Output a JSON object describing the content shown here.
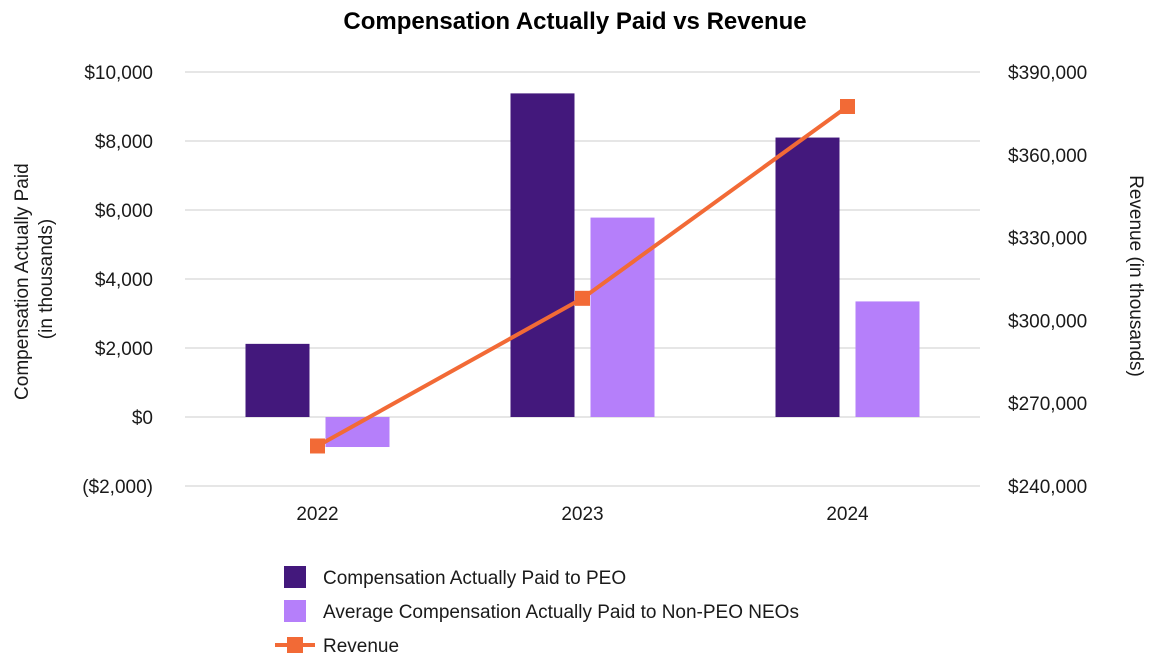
{
  "chart_data": {
    "type": "bar",
    "title": "Compensation Actually Paid vs Revenue",
    "categories": [
      "2022",
      "2023",
      "2024"
    ],
    "y_left": {
      "label_lines": [
        "Compensation Actually Paid",
        "(in thousands)"
      ],
      "min": -2000,
      "max": 10000,
      "ticks": [
        -2000,
        0,
        2000,
        4000,
        6000,
        8000,
        10000
      ],
      "tick_labels": [
        "($2,000)",
        "$0",
        "$2,000",
        "$4,000",
        "$6,000",
        "$8,000",
        "$10,000"
      ]
    },
    "y_right": {
      "label": "Revenue (in thousands)",
      "min": 240000,
      "max": 390000,
      "ticks": [
        240000,
        270000,
        300000,
        330000,
        360000,
        390000
      ],
      "tick_labels": [
        "$240,000",
        "$270,000",
        "$300,000",
        "$330,000",
        "$360,000",
        "$390,000"
      ]
    },
    "grid": true,
    "legend_position": "bottom",
    "series": [
      {
        "name": "Compensation Actually Paid to PEO",
        "type": "bar",
        "axis": "left",
        "color": "#43187c",
        "values": [
          2120,
          9380,
          8100
        ]
      },
      {
        "name": "Average Compensation Actually Paid to Non-PEO NEOs",
        "type": "bar",
        "axis": "left",
        "color": "#b57ffa",
        "values": [
          -870,
          5780,
          3350
        ]
      },
      {
        "name": "Revenue",
        "type": "line",
        "axis": "right",
        "color": "#f26a36",
        "marker": "square",
        "values": [
          254500,
          308000,
          377500
        ]
      }
    ]
  }
}
